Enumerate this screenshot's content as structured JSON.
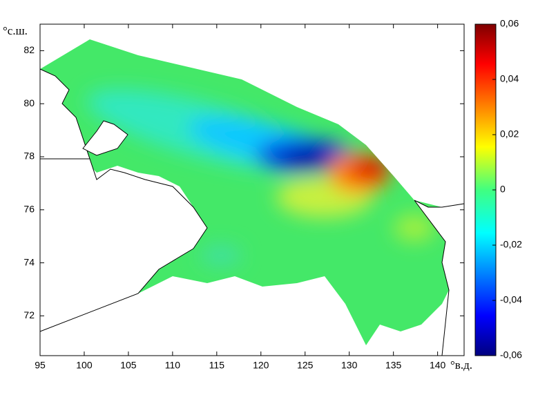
{
  "chart_data": {
    "type": "map",
    "x_label": "°в.д.",
    "y_label": "°с.ш.",
    "xlim": [
      95,
      143
    ],
    "xticks": [
      95,
      100,
      105,
      110,
      115,
      120,
      125,
      130,
      135,
      140
    ],
    "ylim": [
      70.5,
      83
    ],
    "yticks": [
      72,
      74,
      76,
      78,
      80,
      82
    ],
    "colorbar": {
      "lim": [
        -0.06,
        0.06
      ],
      "ticks": [
        {
          "value": 0.06,
          "label": "0,06"
        },
        {
          "value": 0.04,
          "label": "0,04"
        },
        {
          "value": 0.02,
          "label": "0,02"
        },
        0,
        {
          "value": -0.02,
          "label": "-0,02"
        },
        {
          "value": -0.04,
          "label": "-0,04"
        },
        {
          "value": -0.06,
          "label": "-0,06"
        }
      ]
    }
  }
}
